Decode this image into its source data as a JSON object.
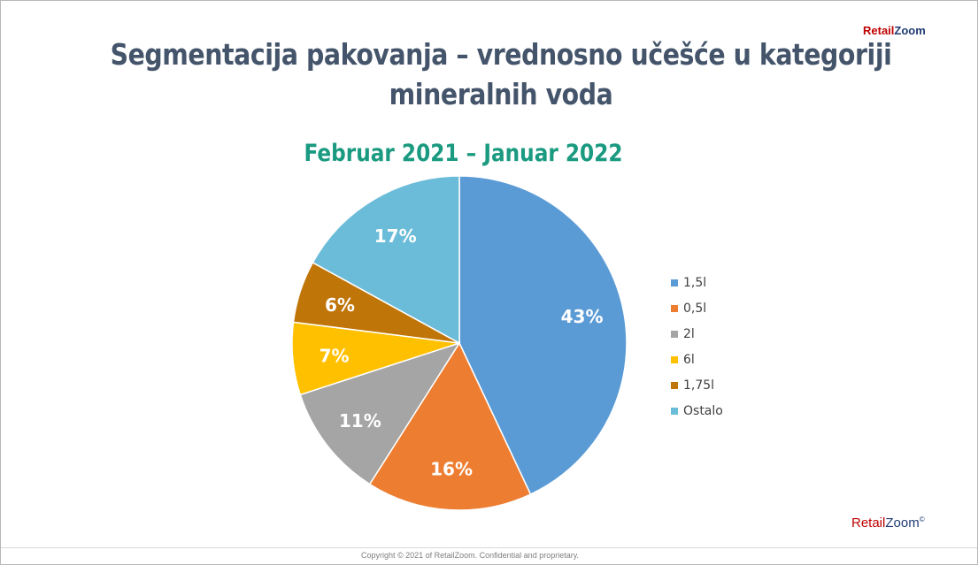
{
  "logo": {
    "part1": "Retail",
    "part2": "Zoom",
    "symbol": "©"
  },
  "chart_data": {
    "type": "pie",
    "title": "Segmentacija pakovanja – vrednosno učešće u kategoriji mineralnih voda",
    "subtitle": "Februar 2021 – Januar 2022",
    "categories": [
      "1,5l",
      "0,5l",
      "2l",
      "6l",
      "1,75l",
      "Ostalo"
    ],
    "values": [
      43,
      16,
      11,
      7,
      6,
      17
    ],
    "data_labels": [
      "43%",
      "16%",
      "11%",
      "7%",
      "6%",
      "17%"
    ],
    "colors": [
      "#5b9bd5",
      "#ed7d31",
      "#a5a5a5",
      "#ffc000",
      "#c07509",
      "#6bbcd9"
    ],
    "legend_position": "right",
    "unit": "%"
  },
  "footer": {
    "copyright": "Copyright © 2021 of RetailZoom. Confidential and proprietary."
  }
}
